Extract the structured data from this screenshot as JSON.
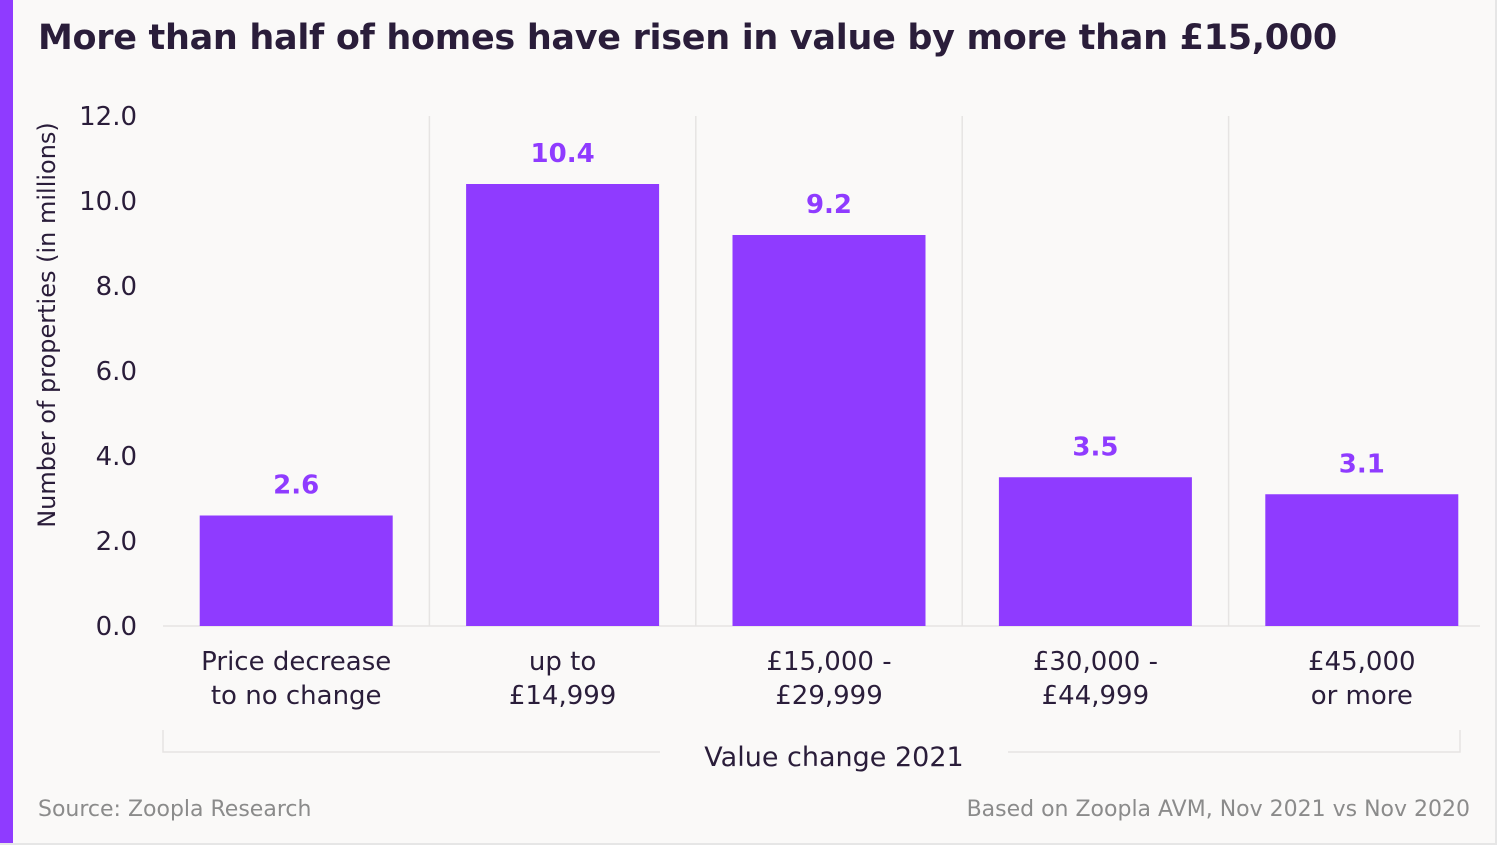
{
  "colors": {
    "accent": "#8f3bff",
    "bar": "#8f3bff",
    "label": "#8f3bff",
    "text": "#2a1d3a",
    "muted": "#8b8b8b",
    "grid": "#e6e4e3"
  },
  "chart_data": {
    "type": "bar",
    "title": "More than half of homes have risen in value by more than £15,000",
    "xlabel": "Value change 2021",
    "ylabel": "Number of properties (in millions)",
    "ylim": [
      0,
      12
    ],
    "yticks": [
      "0.0",
      "2.0",
      "4.0",
      "6.0",
      "8.0",
      "10.0",
      "12.0"
    ],
    "categories": [
      [
        "Price decrease",
        "to no change"
      ],
      [
        "up to",
        "£14,999"
      ],
      [
        "£15,000 -",
        "£29,999"
      ],
      [
        "£30,000 -",
        "£44,999"
      ],
      [
        "£45,000",
        "or more"
      ]
    ],
    "values": [
      2.6,
      10.4,
      9.2,
      3.5,
      3.1
    ],
    "data_labels": [
      "2.6",
      "10.4",
      "9.2",
      "3.5",
      "3.1"
    ]
  },
  "footer": {
    "source": "Source: Zoopla Research",
    "basis": "Based on Zoopla AVM, Nov 2021 vs Nov 2020"
  }
}
